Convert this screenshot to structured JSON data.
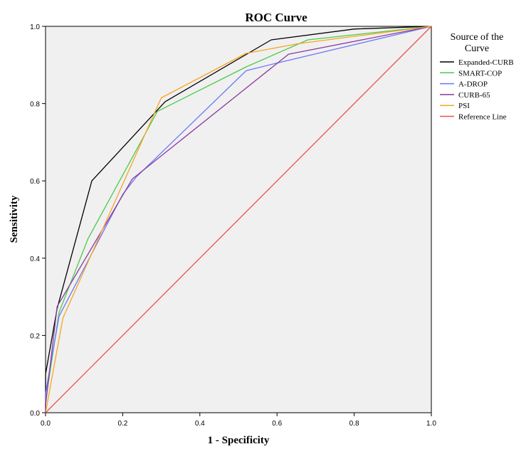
{
  "chart_data": {
    "type": "line",
    "title": "ROC Curve",
    "xlabel": "1 - Specificity",
    "ylabel": "Sensitivity",
    "xlim": [
      0.0,
      1.0
    ],
    "ylim": [
      0.0,
      1.0
    ],
    "x_ticks": [
      "0.0",
      "0.2",
      "0.4",
      "0.6",
      "0.8",
      "1.0"
    ],
    "y_ticks": [
      "0.0",
      "0.2",
      "0.4",
      "0.6",
      "0.8",
      "1.0"
    ],
    "grid": false,
    "plot_background": "#f0f0f0",
    "legend": {
      "title_line1": "Source of the",
      "title_line2": "Curve",
      "placement": "right"
    },
    "series": [
      {
        "name": "Expanded-CURB",
        "color": "#000000",
        "points": [
          [
            0,
            0
          ],
          [
            0,
            0.1
          ],
          [
            0.03,
            0.27
          ],
          [
            0.12,
            0.6
          ],
          [
            0.31,
            0.805
          ],
          [
            0.585,
            0.965
          ],
          [
            0.8,
            0.993
          ],
          [
            1,
            1
          ]
        ]
      },
      {
        "name": "SMART-COP",
        "color": "#4cc94c",
        "points": [
          [
            0,
            0
          ],
          [
            0,
            0.03
          ],
          [
            0.035,
            0.26
          ],
          [
            0.11,
            0.45
          ],
          [
            0.29,
            0.78
          ],
          [
            0.52,
            0.895
          ],
          [
            0.68,
            0.965
          ],
          [
            1,
            1
          ]
        ]
      },
      {
        "name": "A-DROP",
        "color": "#6b78f5",
        "points": [
          [
            0,
            0
          ],
          [
            0,
            0.05
          ],
          [
            0.035,
            0.25
          ],
          [
            0.2,
            0.565
          ],
          [
            0.235,
            0.61
          ],
          [
            0.52,
            0.885
          ],
          [
            0.6,
            0.905
          ],
          [
            1,
            1
          ]
        ]
      },
      {
        "name": "CURB-65",
        "color": "#8b3a9e",
        "points": [
          [
            0,
            0
          ],
          [
            0,
            0.02
          ],
          [
            0.03,
            0.275
          ],
          [
            0.225,
            0.605
          ],
          [
            0.63,
            0.928
          ],
          [
            1,
            1
          ]
        ]
      },
      {
        "name": "PSI",
        "color": "#f5a623",
        "points": [
          [
            0,
            0
          ],
          [
            0.045,
            0.245
          ],
          [
            0.3,
            0.815
          ],
          [
            0.52,
            0.93
          ],
          [
            0.655,
            0.955
          ],
          [
            1,
            1
          ]
        ]
      },
      {
        "name": "Reference Line",
        "color": "#f05050",
        "points": [
          [
            0,
            0
          ],
          [
            1,
            1
          ]
        ]
      }
    ]
  }
}
